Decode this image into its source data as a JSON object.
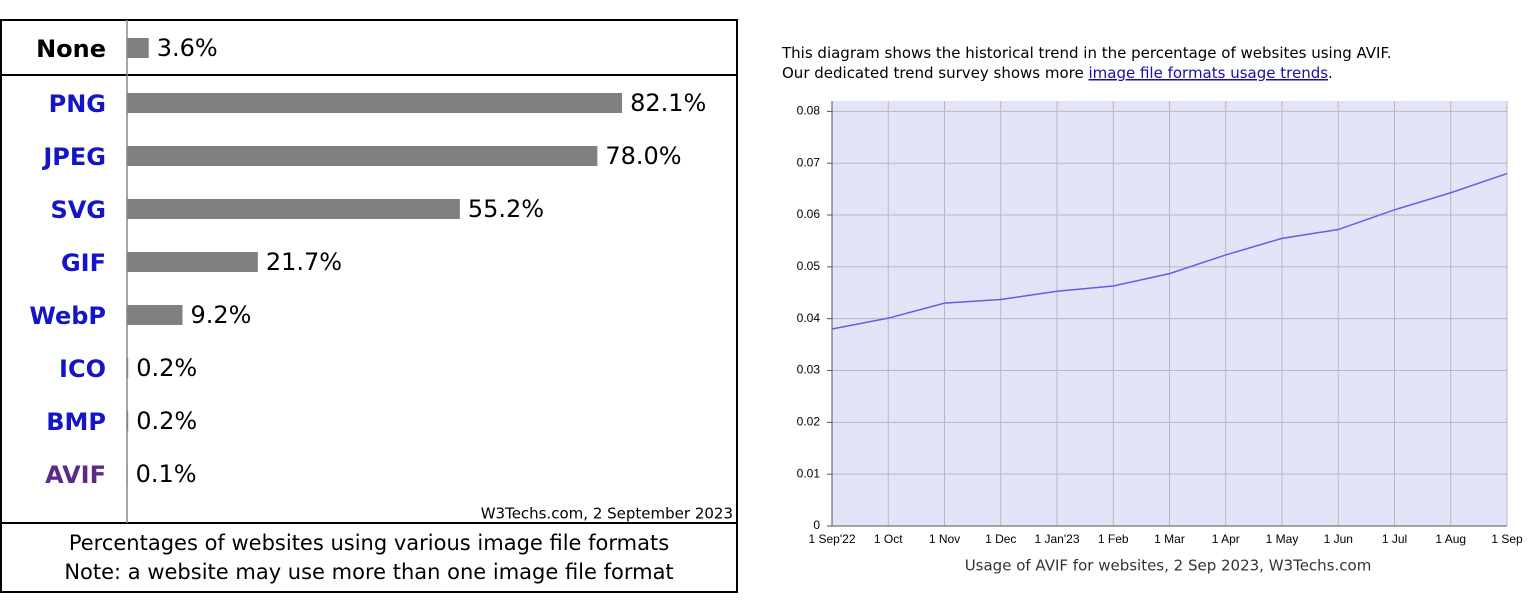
{
  "chart_data": [
    {
      "type": "bar",
      "categories": [
        "None",
        "PNG",
        "JPEG",
        "SVG",
        "GIF",
        "WebP",
        "ICO",
        "BMP",
        "AVIF"
      ],
      "values": [
        3.6,
        82.1,
        78.0,
        55.2,
        21.7,
        9.2,
        0.2,
        0.2,
        0.1
      ],
      "value_labels": [
        "3.6%",
        "82.1%",
        "78.0%",
        "55.2%",
        "21.7%",
        "9.2%",
        "0.2%",
        "0.2%",
        "0.1%"
      ],
      "color": "#808080",
      "label_colors": [
        "#000000",
        "#1515c8",
        "#1515c8",
        "#1515c8",
        "#1515c8",
        "#1515c8",
        "#1515c8",
        "#1515c8",
        "#5b2a86"
      ],
      "source": "W3Techs.com, 2 September 2023",
      "caption": [
        "Percentages of websites using various image file formats",
        "Note: a website may use more than one image file format"
      ]
    },
    {
      "type": "line",
      "intro": {
        "line1": "This diagram shows the historical trend in the percentage of websites using AVIF.",
        "line2": "Our dedicated trend survey shows more ",
        "link": "image file formats usage trends",
        "end": "."
      },
      "categories": [
        "1 Sep'22",
        "1 Oct",
        "1 Nov",
        "1 Dec",
        "1 Jan'23",
        "1 Feb",
        "1 Mar",
        "1 Apr",
        "1 May",
        "1 Jun",
        "1 Jul",
        "1 Aug",
        "1 Sep"
      ],
      "values": [
        0.038,
        0.0401,
        0.043,
        0.0437,
        0.0453,
        0.0463,
        0.0487,
        0.0523,
        0.0555,
        0.0572,
        0.061,
        0.0643,
        0.068
      ],
      "color": "#6060e8",
      "background": "#e4e4f8",
      "ylim": [
        0,
        0.082
      ],
      "yticks": [
        0,
        0.01,
        0.02,
        0.03,
        0.04,
        0.05,
        0.06,
        0.07,
        0.08
      ],
      "grid": true,
      "caption": "Usage of AVIF for websites, 2 Sep 2023, W3Techs.com"
    }
  ]
}
